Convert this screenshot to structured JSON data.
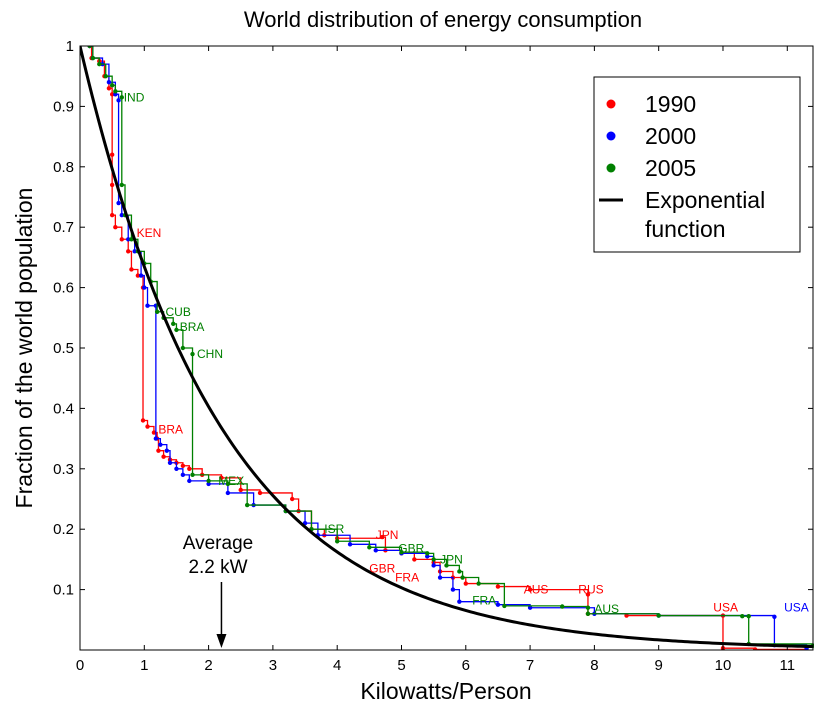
{
  "chart_data": {
    "type": "line",
    "title": "World distribution of energy consumption",
    "xlabel": "Kilowatts/Person",
    "ylabel": "Fraction of the world population",
    "xlim": [
      0,
      11.4
    ],
    "ylim": [
      0,
      1
    ],
    "x_ticks": [
      "0",
      "1",
      "2",
      "3",
      "4",
      "5",
      "6",
      "7",
      "8",
      "9",
      "10",
      "11"
    ],
    "y_ticks": [
      "0.1",
      "0.2",
      "0.3",
      "0.4",
      "0.5",
      "0.6",
      "0.7",
      "0.8",
      "0.9",
      "1"
    ],
    "grid": false,
    "legend_position": "top-right",
    "series": [
      {
        "name": "1990",
        "color": "#ff0000",
        "points": [
          [
            0.15,
            1.0
          ],
          [
            0.18,
            0.98
          ],
          [
            0.3,
            0.975
          ],
          [
            0.38,
            0.95
          ],
          [
            0.45,
            0.93
          ],
          [
            0.5,
            0.92
          ],
          [
            0.5,
            0.82
          ],
          [
            0.5,
            0.77
          ],
          [
            0.5,
            0.72
          ],
          [
            0.55,
            0.7
          ],
          [
            0.65,
            0.68
          ],
          [
            0.75,
            0.66
          ],
          [
            0.8,
            0.63
          ],
          [
            0.9,
            0.62
          ],
          [
            0.98,
            0.6
          ],
          [
            0.98,
            0.38
          ],
          [
            1.05,
            0.37
          ],
          [
            1.15,
            0.36
          ],
          [
            1.2,
            0.35
          ],
          [
            1.22,
            0.33
          ],
          [
            1.3,
            0.32
          ],
          [
            1.4,
            0.315
          ],
          [
            1.5,
            0.31
          ],
          [
            1.6,
            0.305
          ],
          [
            1.7,
            0.3
          ],
          [
            1.9,
            0.29
          ],
          [
            2.2,
            0.285
          ],
          [
            2.5,
            0.265
          ],
          [
            2.8,
            0.26
          ],
          [
            3.3,
            0.25
          ],
          [
            3.4,
            0.23
          ],
          [
            3.6,
            0.2
          ],
          [
            3.8,
            0.19
          ],
          [
            4.0,
            0.185
          ],
          [
            4.7,
            0.187
          ],
          [
            4.75,
            0.165
          ],
          [
            5.0,
            0.16
          ],
          [
            5.2,
            0.15
          ],
          [
            5.5,
            0.145
          ],
          [
            5.6,
            0.13
          ],
          [
            5.8,
            0.12
          ],
          [
            6.0,
            0.11
          ],
          [
            6.5,
            0.105
          ],
          [
            7.0,
            0.1
          ],
          [
            7.9,
            0.092
          ],
          [
            7.9,
            0.06
          ],
          [
            8.5,
            0.057
          ],
          [
            10.0,
            0.057
          ],
          [
            10.0,
            0.003
          ],
          [
            10.5,
            0.001
          ],
          [
            11.3,
            0.0
          ]
        ]
      },
      {
        "name": "2000",
        "color": "#0000ff",
        "points": [
          [
            0.15,
            1.0
          ],
          [
            0.2,
            0.98
          ],
          [
            0.35,
            0.97
          ],
          [
            0.45,
            0.94
          ],
          [
            0.55,
            0.92
          ],
          [
            0.6,
            0.91
          ],
          [
            0.6,
            0.74
          ],
          [
            0.65,
            0.72
          ],
          [
            0.75,
            0.68
          ],
          [
            0.85,
            0.66
          ],
          [
            0.95,
            0.62
          ],
          [
            1.0,
            0.6
          ],
          [
            1.05,
            0.57
          ],
          [
            1.18,
            0.57
          ],
          [
            1.18,
            0.35
          ],
          [
            1.25,
            0.34
          ],
          [
            1.35,
            0.33
          ],
          [
            1.4,
            0.31
          ],
          [
            1.5,
            0.3
          ],
          [
            1.6,
            0.29
          ],
          [
            1.7,
            0.28
          ],
          [
            2.0,
            0.275
          ],
          [
            2.3,
            0.26
          ],
          [
            2.7,
            0.24
          ],
          [
            3.2,
            0.23
          ],
          [
            3.5,
            0.21
          ],
          [
            3.7,
            0.19
          ],
          [
            4.2,
            0.175
          ],
          [
            4.6,
            0.165
          ],
          [
            5.0,
            0.16
          ],
          [
            5.4,
            0.155
          ],
          [
            5.5,
            0.14
          ],
          [
            5.6,
            0.12
          ],
          [
            5.8,
            0.1
          ],
          [
            5.9,
            0.08
          ],
          [
            6.5,
            0.075
          ],
          [
            7.0,
            0.07
          ],
          [
            8.0,
            0.06
          ],
          [
            9.0,
            0.057
          ],
          [
            10.8,
            0.055
          ],
          [
            10.8,
            0.008
          ],
          [
            11.3,
            0.003
          ]
        ]
      },
      {
        "name": "2005",
        "color": "#008000",
        "points": [
          [
            0.15,
            1.0
          ],
          [
            0.2,
            0.98
          ],
          [
            0.3,
            0.97
          ],
          [
            0.4,
            0.95
          ],
          [
            0.5,
            0.935
          ],
          [
            0.55,
            0.925
          ],
          [
            0.65,
            0.915
          ],
          [
            0.65,
            0.77
          ],
          [
            0.7,
            0.72
          ],
          [
            0.8,
            0.68
          ],
          [
            0.9,
            0.66
          ],
          [
            1.0,
            0.64
          ],
          [
            1.1,
            0.61
          ],
          [
            1.2,
            0.56
          ],
          [
            1.3,
            0.55
          ],
          [
            1.45,
            0.54
          ],
          [
            1.5,
            0.53
          ],
          [
            1.6,
            0.5
          ],
          [
            1.75,
            0.49
          ],
          [
            1.75,
            0.29
          ],
          [
            2.0,
            0.28
          ],
          [
            2.3,
            0.275
          ],
          [
            2.6,
            0.24
          ],
          [
            3.2,
            0.23
          ],
          [
            3.6,
            0.2
          ],
          [
            4.0,
            0.18
          ],
          [
            4.5,
            0.17
          ],
          [
            5.0,
            0.162
          ],
          [
            5.4,
            0.16
          ],
          [
            5.5,
            0.15
          ],
          [
            5.7,
            0.14
          ],
          [
            5.9,
            0.13
          ],
          [
            5.95,
            0.12
          ],
          [
            6.2,
            0.11
          ],
          [
            6.6,
            0.073
          ],
          [
            7.5,
            0.072
          ],
          [
            7.9,
            0.07
          ],
          [
            7.9,
            0.06
          ],
          [
            9.0,
            0.057
          ],
          [
            10.3,
            0.056
          ],
          [
            10.4,
            0.056
          ],
          [
            10.4,
            0.01
          ],
          [
            11.4,
            0.007
          ]
        ]
      },
      {
        "name": "Exponential function",
        "color": "#000000",
        "function": "exp(-x/2.2)"
      }
    ],
    "country_labels": [
      {
        "text": "IND",
        "x": 0.68,
        "y": 0.915,
        "color": "#008000"
      },
      {
        "text": "KEN",
        "x": 0.88,
        "y": 0.69,
        "color": "#ff0000"
      },
      {
        "text": "CUB",
        "x": 1.33,
        "y": 0.56,
        "color": "#008000"
      },
      {
        "text": "BRA",
        "x": 1.55,
        "y": 0.535,
        "color": "#008000"
      },
      {
        "text": "CHN",
        "x": 1.82,
        "y": 0.49,
        "color": "#008000"
      },
      {
        "text": "BRA",
        "x": 1.22,
        "y": 0.365,
        "color": "#ff0000"
      },
      {
        "text": "MEX",
        "x": 2.15,
        "y": 0.28,
        "color": "#008000"
      },
      {
        "text": "ISR",
        "x": 3.8,
        "y": 0.2,
        "color": "#008000"
      },
      {
        "text": "JPN",
        "x": 4.6,
        "y": 0.19,
        "color": "#ff0000"
      },
      {
        "text": "GBR",
        "x": 4.95,
        "y": 0.168,
        "color": "#008000"
      },
      {
        "text": "JPN",
        "x": 5.6,
        "y": 0.15,
        "color": "#008000"
      },
      {
        "text": "GBR",
        "x": 4.5,
        "y": 0.135,
        "color": "#ff0000"
      },
      {
        "text": "FRA",
        "x": 4.9,
        "y": 0.12,
        "color": "#ff0000"
      },
      {
        "text": "FRA",
        "x": 6.1,
        "y": 0.082,
        "color": "#008000"
      },
      {
        "text": "AUS",
        "x": 6.9,
        "y": 0.1,
        "color": "#ff0000"
      },
      {
        "text": "RUS",
        "x": 7.75,
        "y": 0.1,
        "color": "#ff0000"
      },
      {
        "text": "AUS",
        "x": 8.0,
        "y": 0.068,
        "color": "#008000"
      },
      {
        "text": "USA",
        "x": 9.85,
        "y": 0.07,
        "color": "#ff0000"
      },
      {
        "text": "USA",
        "x": 10.95,
        "y": 0.07,
        "color": "#0000ff"
      }
    ],
    "annotation": {
      "text_line1": "Average",
      "text_line2": "2.2 kW",
      "x": 2.2
    },
    "legend": [
      {
        "label": "1990",
        "color": "#ff0000",
        "symbol": "dot"
      },
      {
        "label": "2000",
        "color": "#0000ff",
        "symbol": "dot"
      },
      {
        "label": "2005",
        "color": "#008000",
        "symbol": "dot"
      },
      {
        "label": "Exponential",
        "label2": "function",
        "color": "#000000",
        "symbol": "line"
      }
    ]
  }
}
